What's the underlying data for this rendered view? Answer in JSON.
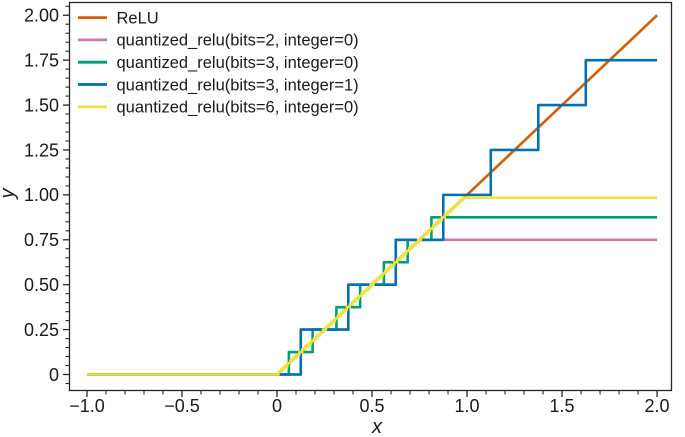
{
  "chart_data": {
    "type": "line",
    "title": "",
    "xlabel": "x",
    "ylabel": "y",
    "xlim": [
      -1.092,
      2.076
    ],
    "ylim": [
      -0.089,
      2.071
    ],
    "x_domain": [
      -1,
      2
    ],
    "grid": false,
    "background_color": "#ffffff",
    "frame_color": "#262626",
    "text_color": "#1a1a1a",
    "x_major_ticks": [
      {
        "value": -1.0,
        "label": "−1.0"
      },
      {
        "value": -0.5,
        "label": "−0.5"
      },
      {
        "value": 0,
        "label": "0"
      },
      {
        "value": 0.5,
        "label": "0.5"
      },
      {
        "value": 1.0,
        "label": "1.0"
      },
      {
        "value": 1.5,
        "label": "1.5"
      },
      {
        "value": 2.0,
        "label": "2.0"
      }
    ],
    "y_major_ticks": [
      {
        "value": 0,
        "label": "0"
      },
      {
        "value": 0.25,
        "label": "0.25"
      },
      {
        "value": 0.5,
        "label": "0.50"
      },
      {
        "value": 0.75,
        "label": "0.75"
      },
      {
        "value": 1.0,
        "label": "1.00"
      },
      {
        "value": 1.25,
        "label": "1.25"
      },
      {
        "value": 1.5,
        "label": "1.50"
      },
      {
        "value": 1.75,
        "label": "1.75"
      },
      {
        "value": 2.0,
        "label": "2.00"
      }
    ],
    "x_minor_step": 0.1,
    "y_minor_step": 0.05,
    "legend": {
      "position": "upper left",
      "frame": false
    },
    "series": [
      {
        "id": "relu",
        "label": "ReLU",
        "color": "#d55e00",
        "kind": "polyline",
        "points": [
          [
            -1,
            0
          ],
          [
            0,
            0
          ],
          [
            2,
            2
          ]
        ]
      },
      {
        "id": "quantized-relu-bits2-int0",
        "label": "quantized_relu(bits=2, integer=0)",
        "color": "#cc79a7",
        "kind": "staircase",
        "bits": 2,
        "integer": 0,
        "step": 0.25,
        "max_value": 0.75
      },
      {
        "id": "quantized-relu-bits3-int0",
        "label": "quantized_relu(bits=3, integer=0)",
        "color": "#009e73",
        "kind": "staircase",
        "bits": 3,
        "integer": 0,
        "step": 0.125,
        "max_value": 0.875
      },
      {
        "id": "quantized-relu-bits3-int1",
        "label": "quantized_relu(bits=3, integer=1)",
        "color": "#0072b2",
        "kind": "staircase",
        "bits": 3,
        "integer": 1,
        "step": 0.25,
        "max_value": 1.75
      },
      {
        "id": "quantized-relu-bits6-int0",
        "label": "quantized_relu(bits=6, integer=0)",
        "color": "#f0e442",
        "kind": "staircase",
        "bits": 6,
        "integer": 0,
        "step": 0.015625,
        "max_value": 0.984375
      }
    ]
  }
}
